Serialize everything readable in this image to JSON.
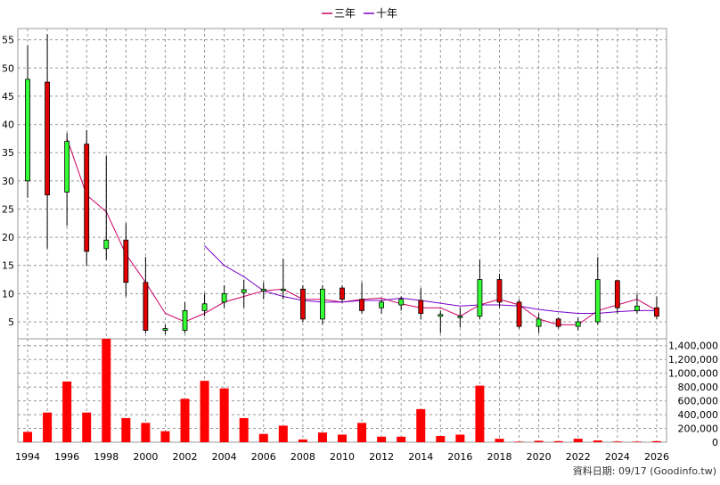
{
  "legend": {
    "items": [
      {
        "label": "三年",
        "color": "#cc0066"
      },
      {
        "label": "十年",
        "color": "#7a00cc"
      }
    ]
  },
  "footer": {
    "source": "資料日期: 09/17  (Goodinfo.tw)"
  },
  "chart_data": [
    {
      "type": "candlestick",
      "xlim": [
        1993.5,
        2026.5
      ],
      "ylim": [
        2,
        57
      ],
      "y_ticks": [
        5,
        10,
        15,
        20,
        25,
        30,
        35,
        40,
        45,
        50,
        55
      ],
      "grid": true,
      "legend_position": "top-center",
      "up_color": "#33ff33",
      "down_color": "#e00000",
      "candles": [
        {
          "year": 1994,
          "open": 30.0,
          "close": 48.0,
          "high": 54.0,
          "low": 27.0
        },
        {
          "year": 1995,
          "open": 47.5,
          "close": 27.5,
          "high": 56.0,
          "low": 18.0
        },
        {
          "year": 1996,
          "open": 28.0,
          "close": 37.0,
          "high": 38.5,
          "low": 22.0
        },
        {
          "year": 1997,
          "open": 36.5,
          "close": 17.5,
          "high": 39.0,
          "low": 15.0
        },
        {
          "year": 1998,
          "open": 18.0,
          "close": 19.5,
          "high": 34.5,
          "low": 16.0
        },
        {
          "year": 1999,
          "open": 19.5,
          "close": 12.0,
          "high": 22.5,
          "low": 9.5
        },
        {
          "year": 2000,
          "open": 12.0,
          "close": 3.5,
          "high": 16.5,
          "low": 3.0
        },
        {
          "year": 2001,
          "open": 3.5,
          "close": 3.8,
          "high": 4.5,
          "low": 2.8
        },
        {
          "year": 2002,
          "open": 3.5,
          "close": 7.0,
          "high": 8.5,
          "low": 3.0
        },
        {
          "year": 2003,
          "open": 7.0,
          "close": 8.2,
          "high": 10.0,
          "low": 6.0
        },
        {
          "year": 2004,
          "open": 8.5,
          "close": 10.0,
          "high": 11.5,
          "low": 7.5
        },
        {
          "year": 2005,
          "open": 10.2,
          "close": 10.7,
          "high": 12.5,
          "low": 7.5
        },
        {
          "year": 2006,
          "open": 10.5,
          "close": 10.8,
          "high": 12.0,
          "low": 9.0
        },
        {
          "year": 2007,
          "open": 10.6,
          "close": 10.8,
          "high": 16.2,
          "low": 9.0
        },
        {
          "year": 2008,
          "open": 10.8,
          "close": 5.5,
          "high": 11.5,
          "low": 5.0
        },
        {
          "year": 2009,
          "open": 5.5,
          "close": 10.8,
          "high": 11.5,
          "low": 4.5
        },
        {
          "year": 2010,
          "open": 11.0,
          "close": 9.0,
          "high": 11.5,
          "low": 8.5
        },
        {
          "year": 2011,
          "open": 9.0,
          "close": 7.0,
          "high": 12.0,
          "low": 6.5
        },
        {
          "year": 2012,
          "open": 7.5,
          "close": 8.5,
          "high": 9.0,
          "low": 6.5
        },
        {
          "year": 2013,
          "open": 8.0,
          "close": 9.0,
          "high": 9.5,
          "low": 7.0
        },
        {
          "year": 2014,
          "open": 8.8,
          "close": 6.5,
          "high": 11.0,
          "low": 5.5
        },
        {
          "year": 2015,
          "open": 6.0,
          "close": 6.3,
          "high": 7.0,
          "low": 3.0
        },
        {
          "year": 2016,
          "open": 6.0,
          "close": 6.0,
          "high": 7.5,
          "low": 4.0
        },
        {
          "year": 2017,
          "open": 6.0,
          "close": 12.5,
          "high": 16.0,
          "low": 5.5
        },
        {
          "year": 2018,
          "open": 12.5,
          "close": 8.5,
          "high": 13.5,
          "low": 7.5
        },
        {
          "year": 2019,
          "open": 8.5,
          "close": 4.2,
          "high": 9.0,
          "low": 3.8
        },
        {
          "year": 2020,
          "open": 4.2,
          "close": 5.5,
          "high": 6.5,
          "low": 3.0
        },
        {
          "year": 2021,
          "open": 5.5,
          "close": 4.2,
          "high": 5.8,
          "low": 3.8
        },
        {
          "year": 2022,
          "open": 4.2,
          "close": 5.0,
          "high": 5.8,
          "low": 3.5
        },
        {
          "year": 2023,
          "open": 5.0,
          "close": 12.5,
          "high": 16.5,
          "low": 4.5
        },
        {
          "year": 2024,
          "open": 12.3,
          "close": 7.5,
          "high": 12.5,
          "low": 6.5
        },
        {
          "year": 2025,
          "open": 7.0,
          "close": 7.8,
          "high": 10.0,
          "low": 6.5
        },
        {
          "year": 2026,
          "open": 7.5,
          "close": 6.0,
          "high": 9.5,
          "low": 5.5
        }
      ],
      "series": [
        {
          "name": "三年",
          "color": "#cc0066",
          "points": [
            [
              1996,
              37.5
            ],
            [
              1997,
              27.5
            ],
            [
              1998,
              24.5
            ],
            [
              1999,
              17.0
            ],
            [
              2000,
              12.0
            ],
            [
              2001,
              6.5
            ],
            [
              2002,
              5.0
            ],
            [
              2003,
              6.5
            ],
            [
              2004,
              8.5
            ],
            [
              2005,
              9.5
            ],
            [
              2006,
              10.5
            ],
            [
              2007,
              10.8
            ],
            [
              2008,
              9.0
            ],
            [
              2009,
              9.0
            ],
            [
              2010,
              8.5
            ],
            [
              2011,
              9.0
            ],
            [
              2012,
              9.2
            ],
            [
              2013,
              8.2
            ],
            [
              2014,
              7.5
            ],
            [
              2015,
              7.5
            ],
            [
              2016,
              6.0
            ],
            [
              2017,
              8.0
            ],
            [
              2018,
              9.0
            ],
            [
              2019,
              8.0
            ],
            [
              2020,
              5.5
            ],
            [
              2021,
              4.5
            ],
            [
              2022,
              4.5
            ],
            [
              2023,
              7.0
            ],
            [
              2024,
              8.0
            ],
            [
              2025,
              9.0
            ],
            [
              2026,
              7.0
            ]
          ]
        },
        {
          "name": "十年",
          "color": "#7a00cc",
          "points": [
            [
              2003,
              18.5
            ],
            [
              2004,
              15.0
            ],
            [
              2005,
              13.0
            ],
            [
              2006,
              10.5
            ],
            [
              2007,
              9.5
            ],
            [
              2008,
              8.8
            ],
            [
              2009,
              8.5
            ],
            [
              2010,
              8.5
            ],
            [
              2011,
              8.8
            ],
            [
              2012,
              8.8
            ],
            [
              2013,
              9.2
            ],
            [
              2014,
              8.8
            ],
            [
              2015,
              8.3
            ],
            [
              2016,
              7.8
            ],
            [
              2017,
              8.0
            ],
            [
              2018,
              8.0
            ],
            [
              2019,
              7.8
            ],
            [
              2020,
              7.2
            ],
            [
              2021,
              6.8
            ],
            [
              2022,
              6.5
            ],
            [
              2023,
              6.5
            ],
            [
              2024,
              6.8
            ],
            [
              2025,
              7.0
            ],
            [
              2026,
              7.0
            ]
          ]
        }
      ]
    },
    {
      "type": "bar",
      "bar_color": "#ff0000",
      "ylim": [
        0,
        1500000
      ],
      "y_ticks": [
        0,
        200000,
        400000,
        600000,
        800000,
        1000000,
        1200000,
        1400000
      ],
      "y_tick_labels": [
        "0",
        "200,000",
        "400,000",
        "600,000",
        "800,000",
        "1,000,000",
        "1,200,000",
        "1,400,000"
      ],
      "x_ticks": [
        1994,
        1996,
        1998,
        2000,
        2002,
        2004,
        2006,
        2008,
        2010,
        2012,
        2014,
        2016,
        2018,
        2020,
        2022,
        2024,
        2026
      ],
      "categories": [
        1994,
        1995,
        1996,
        1997,
        1998,
        1999,
        2000,
        2001,
        2002,
        2003,
        2004,
        2005,
        2006,
        2007,
        2008,
        2009,
        2010,
        2011,
        2012,
        2013,
        2014,
        2015,
        2016,
        2017,
        2018,
        2019,
        2020,
        2021,
        2022,
        2023,
        2024,
        2025,
        2026
      ],
      "values": [
        150000,
        430000,
        880000,
        430000,
        1500000,
        350000,
        280000,
        160000,
        630000,
        890000,
        780000,
        350000,
        120000,
        240000,
        40000,
        140000,
        110000,
        280000,
        80000,
        80000,
        480000,
        90000,
        110000,
        820000,
        50000,
        8000,
        20000,
        15000,
        50000,
        25000,
        10000,
        8000,
        15000
      ]
    }
  ]
}
